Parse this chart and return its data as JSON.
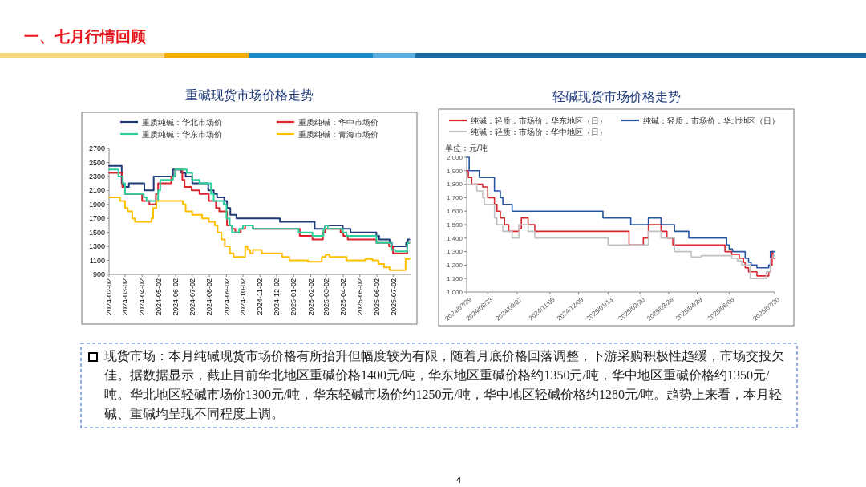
{
  "chart_data": [
    {
      "type": "step",
      "title": "重碱现货市场价格走势",
      "legend": "top",
      "xlim": [
        "2024-02-02",
        "2025-08-02"
      ],
      "xticks": [
        "2024-02-02",
        "2024-03-02",
        "2024-04-02",
        "2024-05-02",
        "2024-06-02",
        "2024-07-02",
        "2024-08-02",
        "2024-09-02",
        "2024-10-02",
        "2024-11-02",
        "2024-12-02",
        "2025-01-02",
        "2025-02-02",
        "2025-03-02",
        "2025-04-02",
        "2025-05-02",
        "2025-06-02",
        "2025-07-02"
      ],
      "ylim": [
        900,
        2700
      ],
      "yticks": [
        900,
        1100,
        1300,
        1500,
        1700,
        1900,
        2100,
        2300,
        2500,
        2700
      ],
      "series": [
        {
          "name": "重质纯碱：华北市场价",
          "color": "#1f3a7a",
          "x": [
            "2024-02-02",
            "2024-02-25",
            "2024-02-29",
            "2024-03-09",
            "2024-04-06",
            "2024-04-23",
            "2024-05-28",
            "2024-06-12",
            "2024-06-20",
            "2024-07-02",
            "2024-07-31",
            "2024-08-10",
            "2024-08-16",
            "2024-08-29",
            "2024-09-03",
            "2024-09-09",
            "2024-09-20",
            "2024-12-08",
            "2025-02-09",
            "2025-02-28",
            "2025-04-01",
            "2025-04-15",
            "2025-06-01",
            "2025-06-06",
            "2025-06-25",
            "2025-06-29",
            "2025-07-25",
            "2025-07-28",
            "2025-07-31"
          ],
          "values": [
            2450,
            2200,
            2150,
            2200,
            2100,
            2300,
            2400,
            2350,
            2300,
            2200,
            2100,
            2050,
            2000,
            1950,
            1850,
            1750,
            1700,
            1650,
            1550,
            1600,
            1550,
            1500,
            1450,
            1400,
            1350,
            1300,
            1350,
            1400,
            1400
          ]
        },
        {
          "name": "重质纯碱：华中市场价",
          "color": "#d9262c",
          "x": [
            "2024-02-02",
            "2024-02-26",
            "2024-03-02",
            "2024-04-02",
            "2024-04-15",
            "2024-04-27",
            "2024-05-01",
            "2024-05-25",
            "2024-06-01",
            "2024-06-14",
            "2024-06-18",
            "2024-07-01",
            "2024-07-15",
            "2024-08-01",
            "2024-08-14",
            "2024-08-20",
            "2024-09-03",
            "2024-09-12",
            "2024-09-18",
            "2024-09-28",
            "2024-10-06",
            "2024-10-20",
            "2025-01-13",
            "2025-02-05",
            "2025-02-24",
            "2025-02-28",
            "2025-03-28",
            "2025-04-02",
            "2025-04-10",
            "2025-06-01",
            "2025-06-24",
            "2025-07-01",
            "2025-07-27",
            "2025-07-31"
          ],
          "values": [
            2350,
            2150,
            2050,
            1950,
            1900,
            2050,
            2200,
            2300,
            2400,
            2250,
            2150,
            2100,
            2050,
            1950,
            1850,
            1800,
            1600,
            1550,
            1500,
            1550,
            1600,
            1550,
            1450,
            1400,
            1500,
            1550,
            1500,
            1450,
            1400,
            1350,
            1300,
            1200,
            1350,
            1350
          ]
        },
        {
          "name": "重质纯碱：华东市场价",
          "color": "#2ecf9e",
          "x": [
            "2024-02-02",
            "2024-02-19",
            "2024-02-27",
            "2024-03-02",
            "2024-04-05",
            "2024-04-10",
            "2024-05-01",
            "2024-05-05",
            "2024-05-28",
            "2024-06-01",
            "2024-06-22",
            "2024-07-02",
            "2024-07-15",
            "2024-08-05",
            "2024-08-10",
            "2024-08-28",
            "2024-09-02",
            "2024-09-08",
            "2024-09-12",
            "2024-09-25",
            "2024-10-02",
            "2024-10-20",
            "2025-01-11",
            "2025-02-05",
            "2025-02-25",
            "2025-02-28",
            "2025-03-05",
            "2025-04-01",
            "2025-04-08",
            "2025-06-01",
            "2025-06-28",
            "2025-07-05",
            "2025-07-27",
            "2025-07-31"
          ],
          "values": [
            2400,
            2300,
            2200,
            2050,
            2000,
            1950,
            2100,
            2250,
            2300,
            2400,
            2350,
            2250,
            2200,
            2050,
            1950,
            1900,
            1700,
            1600,
            1500,
            1550,
            1600,
            1550,
            1500,
            1450,
            1550,
            1600,
            1550,
            1500,
            1450,
            1350,
            1250,
            1230,
            1350,
            1350
          ]
        },
        {
          "name": "重质纯碱：青海市场价",
          "color": "#ffbf00",
          "x": [
            "2024-02-02",
            "2024-02-22",
            "2024-03-02",
            "2024-03-07",
            "2024-03-15",
            "2024-03-20",
            "2024-04-19",
            "2024-04-22",
            "2024-04-28",
            "2024-06-15",
            "2024-06-20",
            "2024-07-02",
            "2024-07-20",
            "2024-08-01",
            "2024-08-12",
            "2024-08-17",
            "2024-08-24",
            "2024-08-30",
            "2024-09-08",
            "2024-09-15",
            "2024-10-06",
            "2024-10-10",
            "2024-10-15",
            "2024-10-20",
            "2024-11-05",
            "2024-12-12",
            "2024-12-25",
            "2025-01-28",
            "2025-02-22",
            "2025-03-01",
            "2025-03-08",
            "2025-04-08",
            "2025-05-12",
            "2025-05-25",
            "2025-06-05",
            "2025-06-15",
            "2025-06-25",
            "2025-07-24",
            "2025-07-31"
          ],
          "values": [
            2000,
            1950,
            1850,
            1800,
            1700,
            1650,
            1700,
            1850,
            1950,
            1900,
            1800,
            1750,
            1700,
            1650,
            1600,
            1500,
            1400,
            1300,
            1200,
            1150,
            1300,
            1250,
            1200,
            1250,
            1200,
            1150,
            1100,
            1080,
            1150,
            1180,
            1150,
            1100,
            1120,
            1100,
            1050,
            1000,
            960,
            1120,
            1120
          ]
        }
      ]
    },
    {
      "type": "step",
      "title": "轻碱现货市场价格走势",
      "legend": "top",
      "ylabel": "单位：元/吨",
      "xlim": [
        "2024-07-29",
        "2025-07-30"
      ],
      "xticks": [
        {
          "value": "2024-07-29",
          "label": "2024/07/29"
        },
        {
          "value": "2024-08-23",
          "label": "2024/08/23"
        },
        {
          "value": "2024-09-27",
          "label": "2024/09/27"
        },
        {
          "value": "2024-11-05",
          "label": "2024/11/05"
        },
        {
          "value": "2024-12-09",
          "label": "2024/12/09"
        },
        {
          "value": "2025-01-13",
          "label": "2025/01/13"
        },
        {
          "value": "2025-02-20",
          "label": "2025/02/20"
        },
        {
          "value": "2025-03-26",
          "label": "2025/03/26"
        },
        {
          "value": "2025-04-29",
          "label": "2025/04/29"
        },
        {
          "value": "2025-06-06",
          "label": "2025/06/06"
        },
        {
          "value": "2025-07-30",
          "label": "2025/07/30"
        }
      ],
      "ylim": [
        1000,
        2000
      ],
      "yticks": [
        {
          "value": 1000,
          "label": "1,000"
        },
        {
          "value": 1100,
          "label": "1,100"
        },
        {
          "value": 1200,
          "label": "1,200"
        },
        {
          "value": 1300,
          "label": "1,300"
        },
        {
          "value": 1400,
          "label": "1,400"
        },
        {
          "value": 1500,
          "label": "1,500"
        },
        {
          "value": 1600,
          "label": "1,600"
        },
        {
          "value": 1700,
          "label": "1,700"
        },
        {
          "value": 1800,
          "label": "1,800"
        },
        {
          "value": 1900,
          "label": "1,900"
        },
        {
          "value": 2000,
          "label": "2,000"
        }
      ],
      "series": [
        {
          "name": "纯碱：轻质：市场价：华东地区（日）",
          "color": "#d9262c",
          "x": [
            "2024-07-29",
            "2024-07-31",
            "2024-08-04",
            "2024-08-17",
            "2024-08-23",
            "2024-08-31",
            "2024-09-03",
            "2024-09-07",
            "2024-09-12",
            "2024-09-17",
            "2024-09-29",
            "2024-10-02",
            "2024-10-10",
            "2024-10-18",
            "2025-02-07",
            "2025-02-24",
            "2025-03-02",
            "2025-03-17",
            "2025-03-24",
            "2025-03-31",
            "2025-06-01",
            "2025-06-09",
            "2025-06-18",
            "2025-06-23",
            "2025-06-25",
            "2025-06-29",
            "2025-07-09",
            "2025-07-23",
            "2025-07-25",
            "2025-07-27",
            "2025-07-28",
            "2025-07-30"
          ],
          "values": [
            1900,
            1850,
            1800,
            1780,
            1700,
            1650,
            1600,
            1550,
            1500,
            1450,
            1470,
            1550,
            1500,
            1450,
            1350,
            1400,
            1500,
            1450,
            1400,
            1350,
            1300,
            1280,
            1250,
            1220,
            1180,
            1150,
            1120,
            1150,
            1200,
            1300,
            1250,
            1250
          ]
        },
        {
          "name": "纯碱：轻质：市场价：华北地区（日）",
          "color": "#2456a4",
          "x": [
            "2024-07-29",
            "2024-08-01",
            "2024-08-13",
            "2024-08-31",
            "2024-09-07",
            "2024-09-10",
            "2024-09-21",
            "2025-01-07",
            "2025-02-09",
            "2025-03-02",
            "2025-03-17",
            "2025-04-02",
            "2025-04-19",
            "2025-06-03",
            "2025-06-06",
            "2025-06-10",
            "2025-06-25",
            "2025-06-29",
            "2025-07-02",
            "2025-07-09",
            "2025-07-23",
            "2025-07-25",
            "2025-07-30"
          ],
          "values": [
            2000,
            1900,
            1850,
            1750,
            1700,
            1650,
            1600,
            1550,
            1500,
            1550,
            1500,
            1450,
            1400,
            1350,
            1320,
            1300,
            1250,
            1220,
            1200,
            1180,
            1200,
            1300,
            1300
          ]
        },
        {
          "name": "纯碱：轻质：市场价：华中地区（日）",
          "color": "#c0c0c0",
          "x": [
            "2024-07-29",
            "2024-08-10",
            "2024-08-17",
            "2024-08-19",
            "2024-08-31",
            "2024-09-03",
            "2024-09-10",
            "2024-09-21",
            "2024-09-29",
            "2024-10-10",
            "2024-10-18",
            "2025-01-13",
            "2025-03-02",
            "2025-03-17",
            "2025-04-02",
            "2025-04-22",
            "2025-05-04",
            "2025-06-09",
            "2025-06-16",
            "2025-06-21",
            "2025-07-01",
            "2025-07-20",
            "2025-07-25",
            "2025-07-28",
            "2025-07-30"
          ],
          "values": [
            1800,
            1750,
            1700,
            1650,
            1550,
            1500,
            1450,
            1400,
            1500,
            1450,
            1400,
            1350,
            1450,
            1400,
            1300,
            1260,
            1270,
            1250,
            1230,
            1200,
            1100,
            1150,
            1250,
            1270,
            1270
          ]
        }
      ]
    },
    {
      "type": "other",
      "title": "一、七月行情回顾",
      "annotations": [
        "现货市场：本月纯碱现货市场价格有所抬升但幅度较为有限，随着月底价格回落调整，下游采购积极性趋缓，市场交投欠佳。据数据显示，截止目前华北地区重碱价格1400元/吨，华东地区重碱价格约1350元/吨，华中地区重碱价格约1350元/吨。华北地区轻碱市场价1300元/吨，华东轻碱市场价约1250元/吨，华中地区轻碱价格约1280元/吨。趋势上来看，本月轻碱、重碱均呈现不同程度上调。",
        "4"
      ]
    }
  ]
}
